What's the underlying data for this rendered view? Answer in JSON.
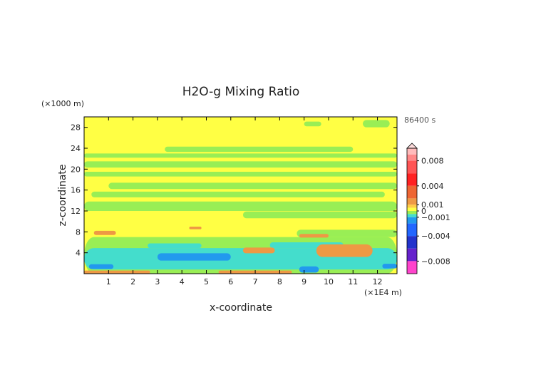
{
  "chart_data": {
    "type": "heatmap",
    "title": "H2O-g Mixing Ratio",
    "xlabel": "x-coordinate",
    "ylabel": "z-coordinate",
    "x_unit_label": "(×1E4 m)",
    "y_unit_label": "(×1000 m)",
    "time_label": "86400 s",
    "xlim": [
      0,
      12.8
    ],
    "ylim": [
      0,
      30
    ],
    "x_ticks": [
      1,
      2,
      3,
      4,
      5,
      6,
      7,
      8,
      9,
      10,
      11,
      12
    ],
    "y_ticks": [
      4,
      8,
      12,
      16,
      20,
      24,
      28
    ],
    "background_color": "#ffff44",
    "layers": [
      {
        "name": "green-band",
        "color": "#99ee55",
        "shapes": [
          {
            "x0": 0,
            "x1": 12.8,
            "y0": 22.2,
            "y1": 23.0
          },
          {
            "x0": 3.3,
            "x1": 11.0,
            "y0": 23.3,
            "y1": 24.3
          },
          {
            "x0": 0,
            "x1": 12.8,
            "y0": 20.3,
            "y1": 21.5
          },
          {
            "x0": 0,
            "x1": 12.8,
            "y0": 18.6,
            "y1": 19.5
          },
          {
            "x0": 1.0,
            "x1": 12.8,
            "y0": 16.2,
            "y1": 17.4
          },
          {
            "x0": 0.3,
            "x1": 12.3,
            "y0": 14.6,
            "y1": 15.7
          },
          {
            "x0": 0,
            "x1": 12.8,
            "y0": 12.0,
            "y1": 13.8
          },
          {
            "x0": 6.5,
            "x1": 12.8,
            "y0": 10.6,
            "y1": 11.9
          },
          {
            "x0": 0,
            "x1": 12.8,
            "y0": 0,
            "y1": 7.0
          },
          {
            "x0": 8.7,
            "x1": 12.8,
            "y0": 7.0,
            "y1": 8.4
          },
          {
            "x0": 9.0,
            "x1": 9.7,
            "y0": 28.2,
            "y1": 29.1
          },
          {
            "x0": 11.4,
            "x1": 12.5,
            "y0": 28.0,
            "y1": 29.4
          }
        ]
      },
      {
        "name": "orange-upper",
        "color": "#ee9944",
        "shapes": [
          {
            "x0": 0.4,
            "x1": 1.3,
            "y0": 7.4,
            "y1": 8.2
          },
          {
            "x0": 4.3,
            "x1": 4.8,
            "y0": 8.5,
            "y1": 9.0
          },
          {
            "x0": 8.8,
            "x1": 10.0,
            "y0": 6.9,
            "y1": 7.6
          }
        ]
      },
      {
        "name": "cyan-band",
        "color": "#44ddcc",
        "shapes": [
          {
            "x0": 0,
            "x1": 12.8,
            "y0": 0.8,
            "y1": 4.9
          },
          {
            "x0": 2.6,
            "x1": 4.8,
            "y0": 4.9,
            "y1": 5.8
          },
          {
            "x0": 7.6,
            "x1": 10.6,
            "y0": 4.9,
            "y1": 6.0
          }
        ]
      },
      {
        "name": "blue-low",
        "color": "#2299ee",
        "shapes": [
          {
            "x0": 3.0,
            "x1": 6.0,
            "y0": 2.5,
            "y1": 3.9
          },
          {
            "x0": 8.8,
            "x1": 9.6,
            "y0": 0.2,
            "y1": 1.4
          },
          {
            "x0": 0.2,
            "x1": 1.2,
            "y0": 0.9,
            "y1": 1.8
          },
          {
            "x0": 12.2,
            "x1": 12.8,
            "y0": 1.0,
            "y1": 1.9
          }
        ]
      },
      {
        "name": "orange-lower",
        "color": "#ee9944",
        "shapes": [
          {
            "x0": 9.5,
            "x1": 11.8,
            "y0": 3.2,
            "y1": 5.6
          },
          {
            "x0": 6.5,
            "x1": 7.8,
            "y0": 3.9,
            "y1": 5.0
          },
          {
            "x0": 0,
            "x1": 2.7,
            "y0": 0,
            "y1": 0.6
          },
          {
            "x0": 5.5,
            "x1": 8.5,
            "y0": 0,
            "y1": 0.6
          }
        ]
      }
    ],
    "colorbar": {
      "segments": [
        {
          "color": "#ffbbbb",
          "from": 0.009,
          "to": 0.01
        },
        {
          "color": "#ff8888",
          "from": 0.008,
          "to": 0.009
        },
        {
          "color": "#ff5555",
          "from": 0.006,
          "to": 0.008
        },
        {
          "color": "#ff2222",
          "from": 0.004,
          "to": 0.006
        },
        {
          "color": "#ee6633",
          "from": 0.002,
          "to": 0.004
        },
        {
          "color": "#ee9944",
          "from": 0.001,
          "to": 0.002
        },
        {
          "color": "#ffcc44",
          "from": 0.0005,
          "to": 0.001
        },
        {
          "color": "#ffff44",
          "from": 0,
          "to": 0.0005
        },
        {
          "color": "#99ee55",
          "from": -0.0005,
          "to": 0
        },
        {
          "color": "#44ddcc",
          "from": -0.001,
          "to": -0.0005
        },
        {
          "color": "#2299ee",
          "from": -0.002,
          "to": -0.001
        },
        {
          "color": "#2266ff",
          "from": -0.004,
          "to": -0.002
        },
        {
          "color": "#2233cc",
          "from": -0.006,
          "to": -0.004
        },
        {
          "color": "#6622cc",
          "from": -0.008,
          "to": -0.006
        },
        {
          "color": "#ff44cc",
          "from": -0.01,
          "to": -0.008
        }
      ],
      "tick_labels": [
        {
          "value": 0.008,
          "label": "0.008"
        },
        {
          "value": 0.004,
          "label": "0.004"
        },
        {
          "value": 0.001,
          "label": "0.001"
        },
        {
          "value": 0,
          "label": "0"
        },
        {
          "value": -0.001,
          "label": "−0.001"
        },
        {
          "value": -0.004,
          "label": "−0.004"
        },
        {
          "value": -0.008,
          "label": "−0.008"
        }
      ]
    }
  }
}
